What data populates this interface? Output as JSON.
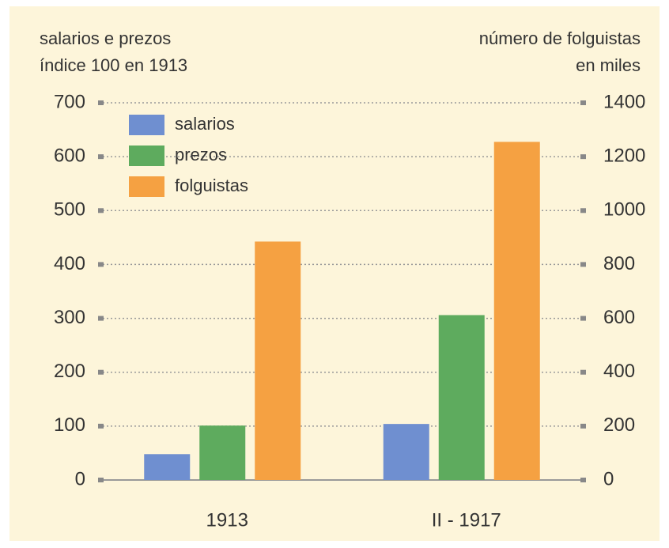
{
  "chart_data": {
    "type": "bar",
    "y_label": [
      "salarios e prezos",
      "índice 100 en 1913"
    ],
    "y2_label": [
      "número de folguistas",
      "en miles"
    ],
    "categories": [
      "1913",
      "II - 1917"
    ],
    "series": [
      {
        "name": "salarios",
        "color": "#6f8fd0",
        "values": [
          48,
          104
        ]
      },
      {
        "name": "prezos",
        "color": "#5eab5e",
        "values": [
          101,
          306
        ]
      },
      {
        "name": "folguistas",
        "color": "#f5a142",
        "axis": "y2",
        "values": [
          885,
          1255
        ]
      }
    ],
    "ylim": [
      0,
      700
    ],
    "yticks": [
      0,
      100,
      200,
      300,
      400,
      500,
      600,
      700
    ],
    "y2lim": [
      0,
      1400
    ],
    "y2ticks": [
      0,
      200,
      400,
      600,
      800,
      1000,
      1200,
      1400
    ],
    "grid": true,
    "legend": "upper left"
  }
}
